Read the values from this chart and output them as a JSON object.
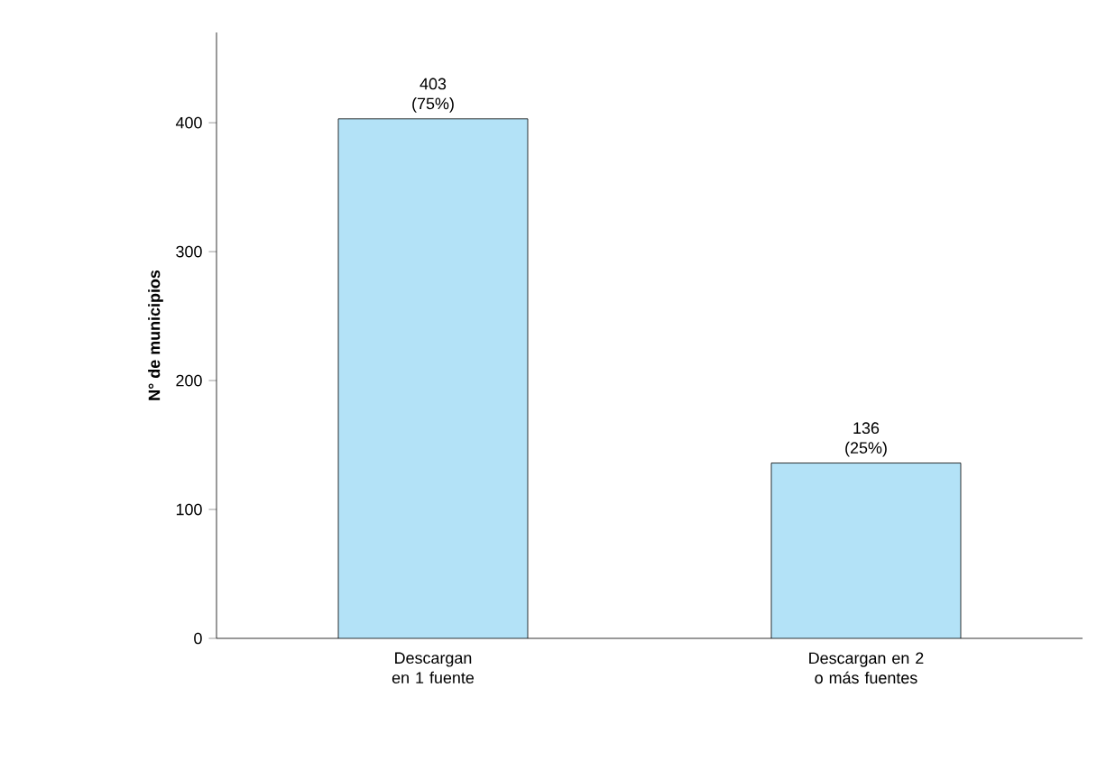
{
  "chart_data": {
    "type": "bar",
    "ylabel": "N° de municipios",
    "categories": [
      "Descargan en 1 fuente",
      "Descargan en 2 o más fuentes"
    ],
    "values": [
      403,
      136
    ],
    "color": "#b3e2f7",
    "value_labels": [
      "403 (75%)",
      "136 (25%)"
    ],
    "ylim": [
      0,
      470
    ],
    "yticks": [
      0,
      100,
      200,
      300,
      400
    ]
  }
}
